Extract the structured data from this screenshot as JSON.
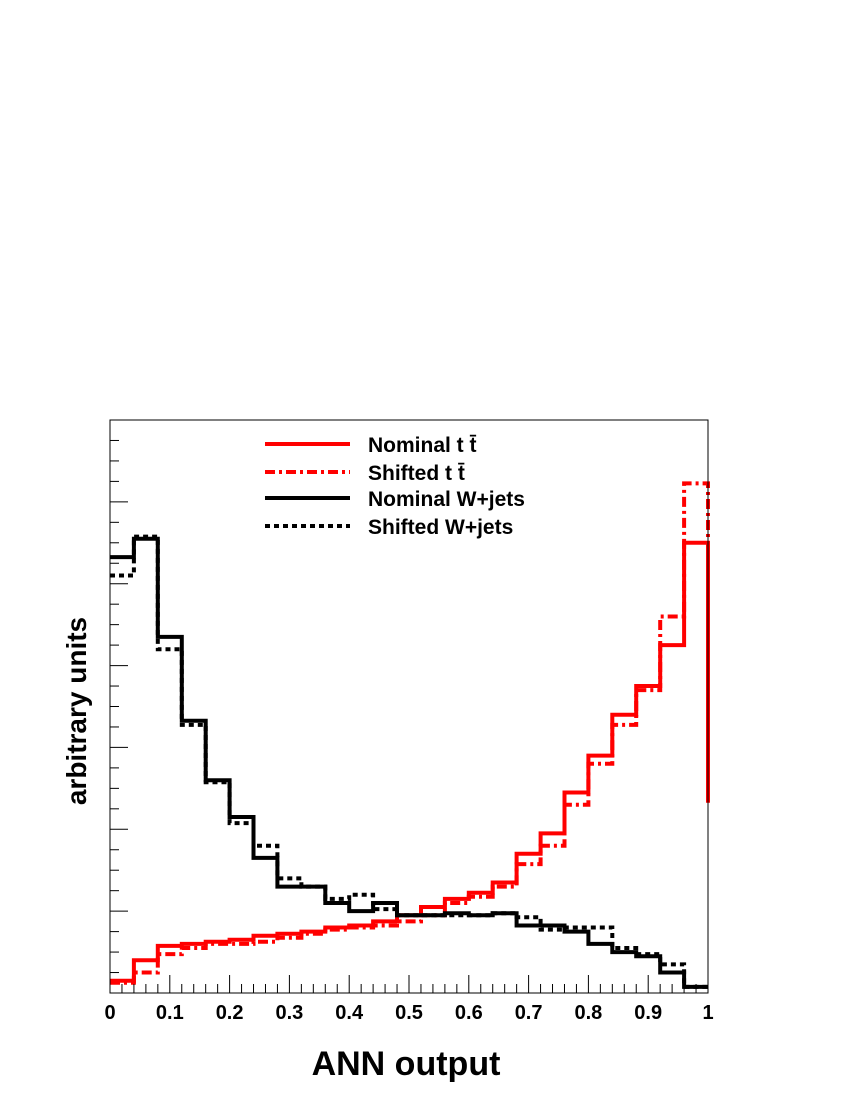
{
  "chart_data": {
    "type": "line",
    "title": "",
    "xlabel": "ANN output",
    "ylabel": "arbitrary units",
    "xlim": [
      0,
      1
    ],
    "ylim": [
      0,
      14
    ],
    "x_tick_labels": [
      "0",
      "0.1",
      "0.2",
      "0.3",
      "0.4",
      "0.5",
      "0.6",
      "0.7",
      "0.8",
      "0.9",
      "1"
    ],
    "y_tick_labels_shown": false,
    "grid": false,
    "legend_position": "top-center",
    "bin_edges": [
      0,
      0.04,
      0.08,
      0.12,
      0.16,
      0.2,
      0.24,
      0.28,
      0.32,
      0.36,
      0.4,
      0.44,
      0.48,
      0.52,
      0.56,
      0.6,
      0.64,
      0.68,
      0.72,
      0.76,
      0.8,
      0.84,
      0.88,
      0.92,
      0.96,
      1.0
    ],
    "series": [
      {
        "name": "Nominal t t̄",
        "color": "#ff0000",
        "style": "solid",
        "values": [
          0.3,
          0.8,
          1.15,
          1.2,
          1.25,
          1.3,
          1.4,
          1.45,
          1.5,
          1.6,
          1.65,
          1.75,
          1.9,
          2.1,
          2.3,
          2.45,
          2.7,
          3.4,
          3.9,
          4.9,
          5.8,
          6.8,
          7.5,
          8.5,
          11.0,
          4.65
        ]
      },
      {
        "name": "Shifted t t̄",
        "color": "#ff0000",
        "style": "dashdot",
        "values": [
          0.25,
          0.5,
          0.95,
          1.1,
          1.2,
          1.2,
          1.25,
          1.35,
          1.45,
          1.55,
          1.6,
          1.65,
          1.75,
          1.9,
          2.2,
          2.35,
          2.6,
          3.15,
          3.6,
          4.6,
          5.6,
          6.55,
          7.4,
          9.2,
          12.45,
          6.2
        ]
      },
      {
        "name": "Nominal W+jets",
        "color": "#000000",
        "style": "solid",
        "values": [
          10.65,
          11.1,
          8.7,
          6.65,
          5.2,
          4.3,
          3.3,
          2.6,
          2.6,
          2.2,
          2.0,
          2.2,
          1.9,
          1.9,
          1.95,
          1.9,
          1.95,
          1.65,
          1.65,
          1.5,
          1.2,
          1.0,
          0.9,
          0.5,
          0.15,
          0.15
        ]
      },
      {
        "name": "Shifted W+jets",
        "color": "#000000",
        "style": "dotted",
        "values": [
          10.2,
          11.15,
          8.4,
          6.55,
          5.15,
          4.15,
          3.6,
          2.8,
          2.6,
          2.3,
          2.4,
          2.05,
          1.9,
          1.9,
          1.9,
          1.9,
          1.95,
          1.85,
          1.55,
          1.6,
          1.6,
          1.1,
          0.95,
          0.7,
          0.15,
          0.15
        ]
      }
    ]
  }
}
